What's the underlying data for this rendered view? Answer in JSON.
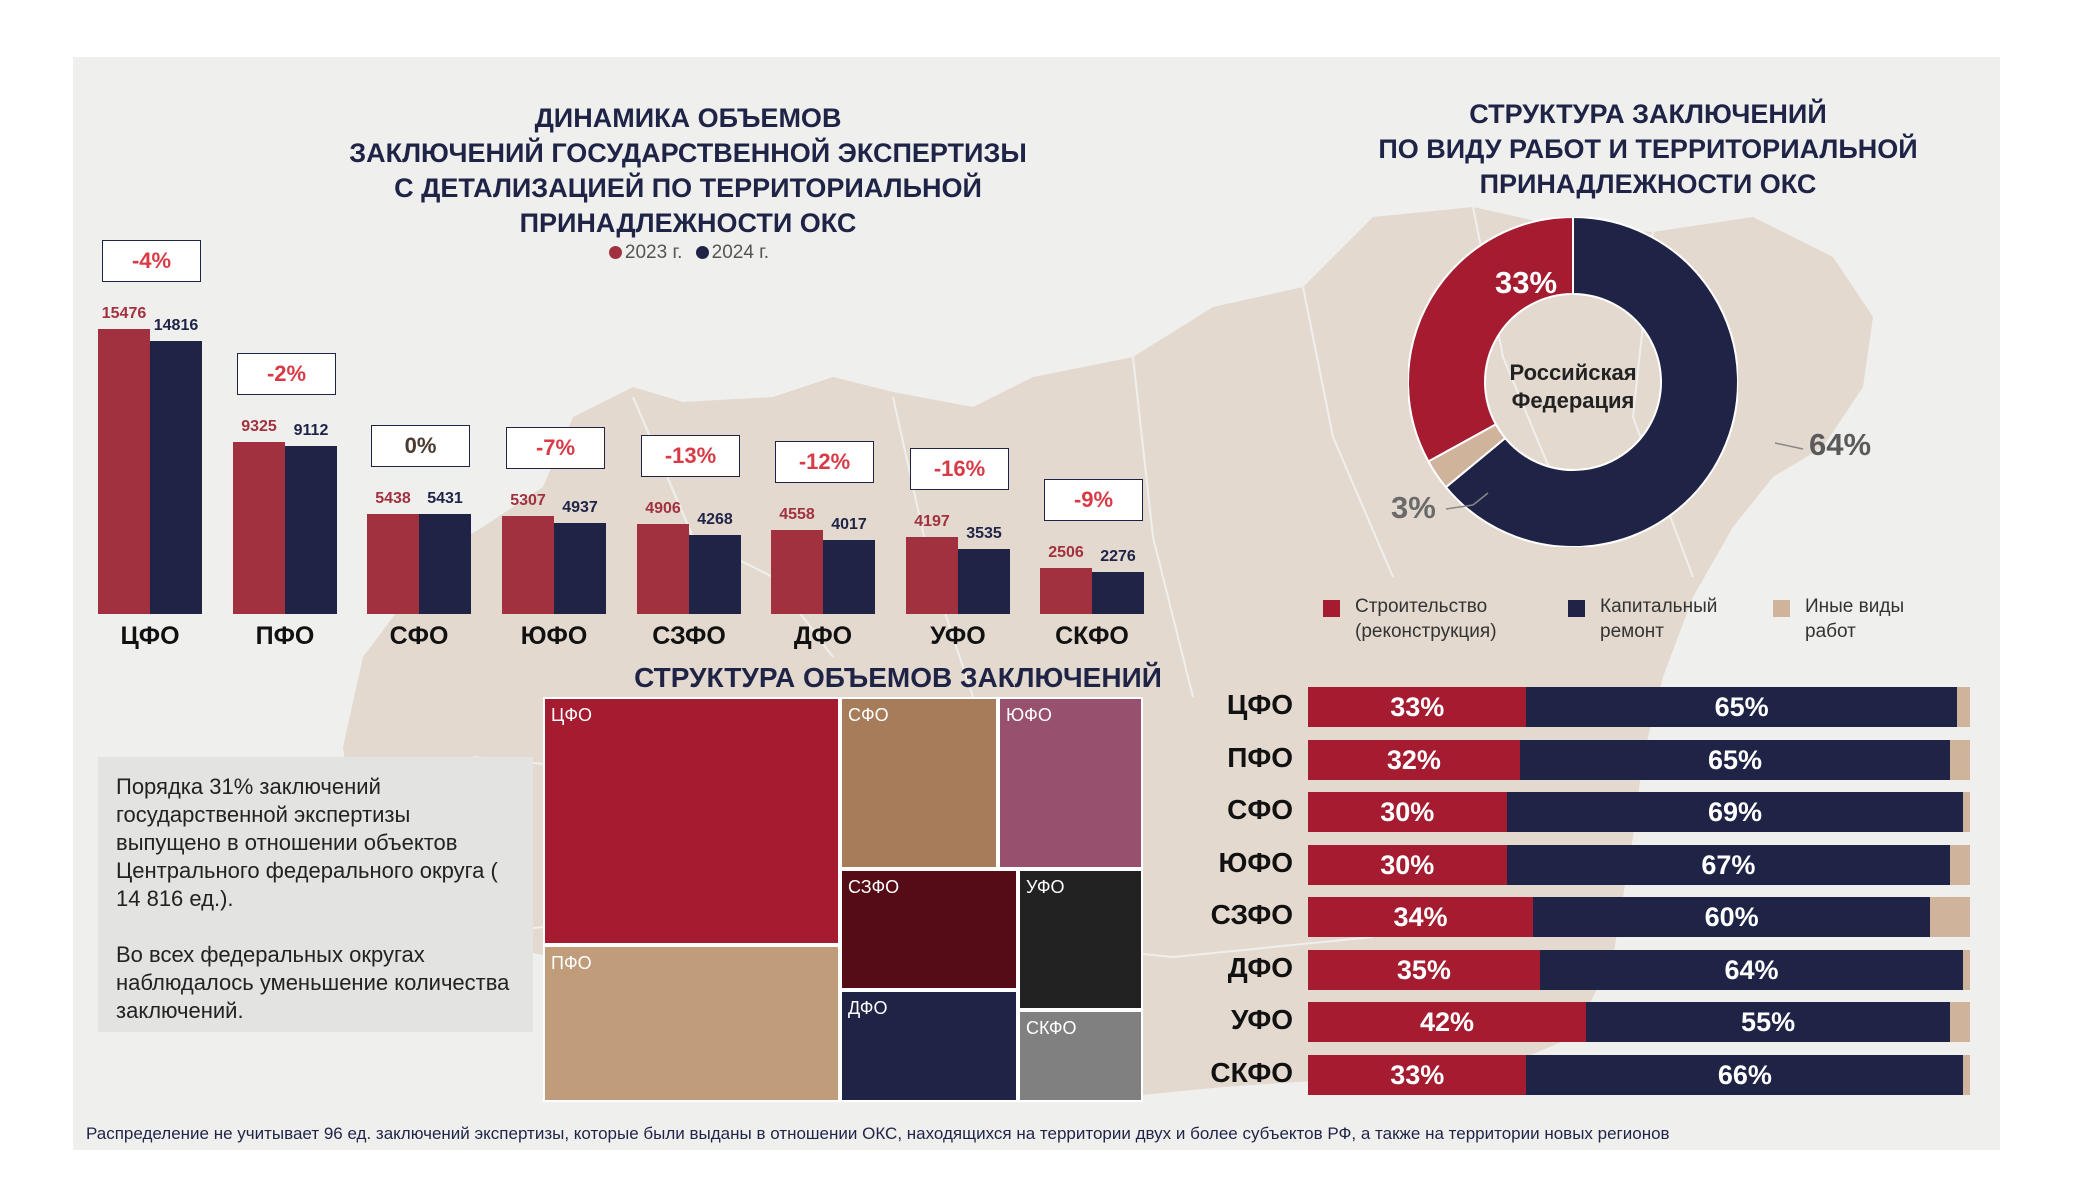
{
  "bar_chart": {
    "title_lines": [
      "ДИНАМИКА ОБЪЕМОВ",
      "ЗАКЛЮЧЕНИЙ ГОСУДАРСТВЕННОЙ ЭКСПЕРТИЗЫ",
      "С ДЕТАЛИЗАЦИЕЙ ПО ТЕРРИТОРИАЛЬНОЙ",
      "ПРИНАДЛЕЖНОСТИ ОКС"
    ],
    "legend": [
      "2023 г.",
      "2024 г."
    ]
  },
  "note": {
    "paragraph1": "Порядка 31% заключений государственной экспертизы выпущено в отношении объектов Центрального федерального округа ( 14 816 ед.).",
    "paragraph2": "Во всех федеральных округах наблюдалось уменьшение количества заключений."
  },
  "treemap_title": "СТРУКТУРА ОБЪЕМОВ ЗАКЛЮЧЕНИЙ",
  "donut": {
    "title_lines": [
      "СТРУКТУРА ЗАКЛЮЧЕНИЙ",
      "ПО ВИДУ РАБОТ И ТЕРРИТОРИАЛЬНОЙ",
      "ПРИНАДЛЕЖНОСТИ ОКС"
    ],
    "center_lines": [
      "Российская",
      "Федерация"
    ],
    "labels": {
      "construction": "33%",
      "repair": "64%",
      "other": "3%"
    },
    "legend": {
      "construction": [
        "Строительство",
        "(реконструкция)"
      ],
      "repair": [
        "Капитальный",
        "ремонт"
      ],
      "other": [
        "Иные виды",
        "работ"
      ]
    }
  },
  "footnote": "Распределение не учитывает 96 ед. заключений экспертизы, которые были выданы в отношении ОКС, находящихся на территории двух и более субъектов РФ, а также на территории новых регионов",
  "colors": {
    "y2023": "#a2313f",
    "y2024": "#1f2447",
    "construction": "#a51c30",
    "repair": "#1f2447",
    "other": "#cfb39b",
    "change": "#d93b46"
  },
  "chart_data": [
    {
      "type": "bar",
      "categories": [
        "ЦФО",
        "ПФО",
        "СФО",
        "ЮФО",
        "СЗФО",
        "ДФО",
        "УФО",
        "СКФО"
      ],
      "series": [
        {
          "name": "2023 г.",
          "values": [
            15476,
            9325,
            5438,
            5307,
            4906,
            4558,
            4197,
            2506
          ]
        },
        {
          "name": "2024 г.",
          "values": [
            14816,
            9112,
            5431,
            4937,
            4268,
            4017,
            3535,
            2276
          ]
        }
      ],
      "changes": [
        "-4%",
        "-2%",
        "0%",
        "-7%",
        "-13%",
        "-12%",
        "-16%",
        "-9%"
      ],
      "title": "ДИНАМИКА ОБЪЕМОВ ЗАКЛЮЧЕНИЙ ГОСУДАРСТВЕННОЙ ЭКСПЕРТИЗЫ С ДЕТАЛИЗАЦИЕЙ ПО ТЕРРИТОРИАЛЬНОЙ ПРИНАДЛЕЖНОСТИ ОКС"
    },
    {
      "type": "treemap",
      "title": "СТРУКТУРА ОБЪЕМОВ ЗАКЛЮЧЕНИЙ",
      "categories": [
        "ЦФО",
        "ПФО",
        "СФО",
        "ЮФО",
        "СЗФО",
        "ДФО",
        "УФО",
        "СКФО"
      ],
      "values": [
        14816,
        9112,
        5431,
        4937,
        4268,
        4017,
        3535,
        2276
      ],
      "colors": [
        "#a51c30",
        "#c09c7b",
        "#a67c5a",
        "#98506f",
        "#560c16",
        "#1f2447",
        "#222222",
        "#808080"
      ]
    },
    {
      "type": "pie",
      "title": "СТРУКТУРА ЗАКЛЮЧЕНИЙ ПО ВИДУ РАБОТ И ТЕРРИТОРИАЛЬНОЙ ПРИНАДЛЕЖНОСТИ ОКС",
      "categories": [
        "Строительство (реконструкция)",
        "Капитальный ремонт",
        "Иные виды работ"
      ],
      "values": [
        33,
        64,
        3
      ]
    },
    {
      "type": "bar",
      "stacked": true,
      "orientation": "horizontal",
      "categories": [
        "ЦФО",
        "ПФО",
        "СФО",
        "ЮФО",
        "СЗФО",
        "ДФО",
        "УФО",
        "СКФО"
      ],
      "series": [
        {
          "name": "Строительство (реконструкция)",
          "values": [
            33,
            32,
            30,
            30,
            34,
            35,
            42,
            33
          ]
        },
        {
          "name": "Капитальный ремонт",
          "values": [
            65,
            65,
            69,
            67,
            60,
            64,
            55,
            66
          ]
        },
        {
          "name": "Иные виды работ",
          "values": [
            2,
            3,
            1,
            3,
            6,
            1,
            3,
            1
          ]
        }
      ]
    }
  ]
}
